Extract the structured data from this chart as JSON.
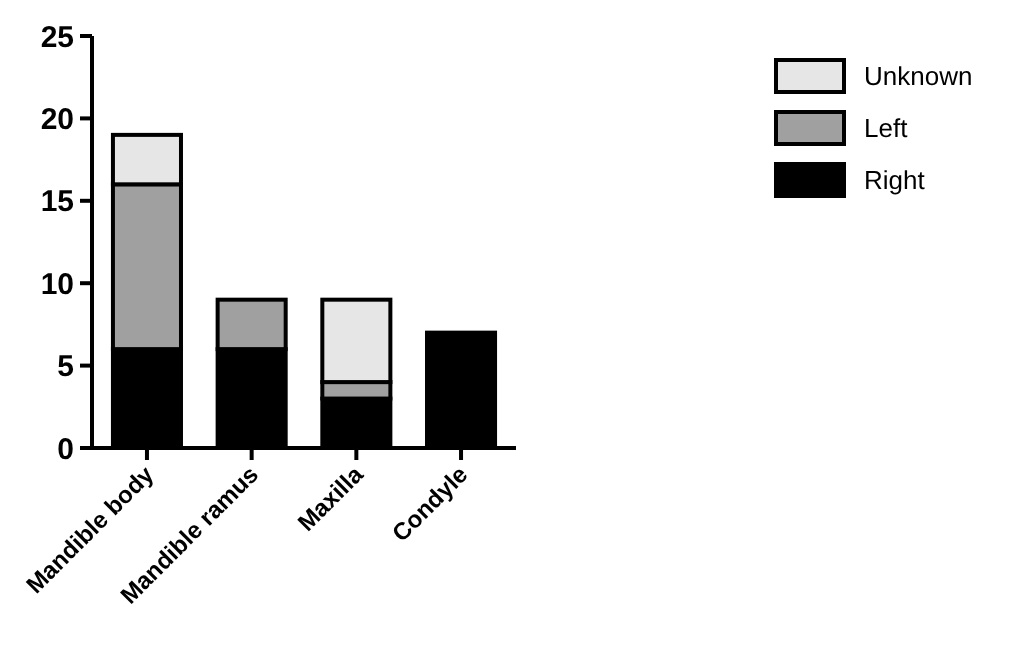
{
  "chart_data": {
    "type": "bar",
    "stacked": true,
    "categories": [
      "Mandible body",
      "Mandible ramus",
      "Maxilla",
      "Condyle"
    ],
    "series": [
      {
        "name": "Right",
        "color": "#000000",
        "values": [
          6,
          6,
          3,
          7
        ]
      },
      {
        "name": "Left",
        "color": "#a0a0a0",
        "values": [
          10,
          3,
          1,
          0
        ]
      },
      {
        "name": "Unknown",
        "color": "#e6e6e6",
        "values": [
          3,
          0,
          5,
          0
        ]
      }
    ],
    "ylim": [
      0,
      25
    ],
    "yticks": [
      0,
      5,
      10,
      15,
      20,
      25
    ],
    "legend": "top right",
    "grid": false
  }
}
